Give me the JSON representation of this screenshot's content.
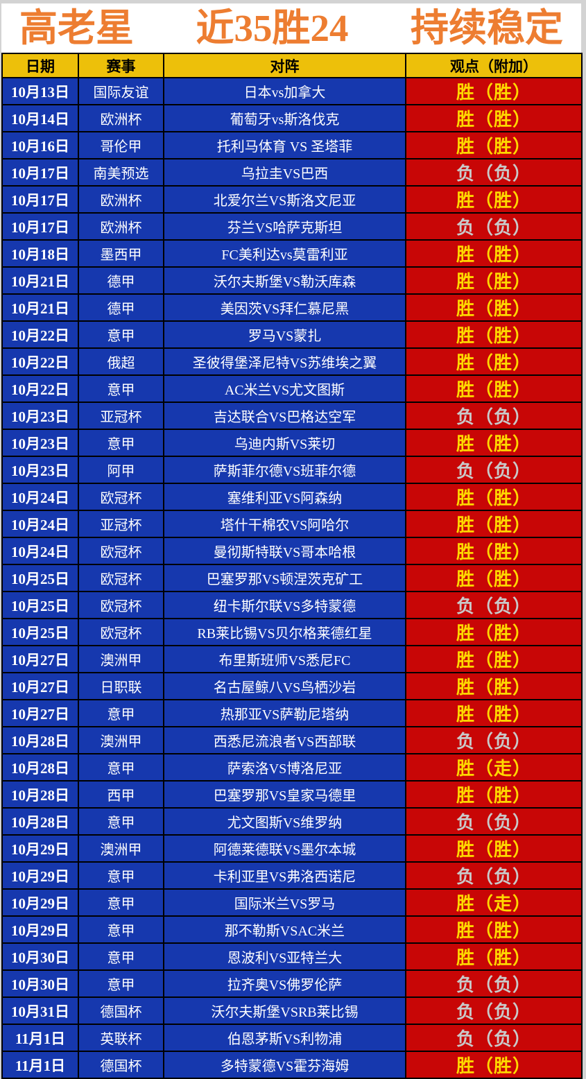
{
  "title": {
    "part1": "高老星",
    "part2": "近35胜24",
    "part3": "持续稳定"
  },
  "columns": [
    "日期",
    "赛事",
    "对阵",
    "观点（附加）"
  ],
  "rows": [
    {
      "date": "10月13日",
      "league": "国际友谊",
      "match": "日本vs加拿大",
      "result": "胜（胜）",
      "outcome": "win"
    },
    {
      "date": "10月14日",
      "league": "欧洲杯",
      "match": "葡萄牙vs斯洛伐克",
      "result": "胜（胜）",
      "outcome": "win"
    },
    {
      "date": "10月16日",
      "league": "哥伦甲",
      "match": "托利马体育 VS 圣塔菲",
      "result": "胜（胜）",
      "outcome": "win"
    },
    {
      "date": "10月17日",
      "league": "南美预选",
      "match": "乌拉圭VS巴西",
      "result": "负（负）",
      "outcome": "lose"
    },
    {
      "date": "10月17日",
      "league": "欧洲杯",
      "match": "北爱尔兰VS斯洛文尼亚",
      "result": "胜（胜）",
      "outcome": "win"
    },
    {
      "date": "10月17日",
      "league": "欧洲杯",
      "match": "芬兰VS哈萨克斯坦",
      "result": "负（负）",
      "outcome": "lose"
    },
    {
      "date": "10月18日",
      "league": "墨西甲",
      "match": "FC美利达vs莫雷利亚",
      "result": "胜（胜）",
      "outcome": "win"
    },
    {
      "date": "10月21日",
      "league": "德甲",
      "match": "沃尔夫斯堡VS勒沃库森",
      "result": "胜（胜）",
      "outcome": "win"
    },
    {
      "date": "10月21日",
      "league": "德甲",
      "match": "美因茨VS拜仁慕尼黑",
      "result": "胜（胜）",
      "outcome": "win"
    },
    {
      "date": "10月22日",
      "league": "意甲",
      "match": "罗马VS蒙扎",
      "result": "胜（胜）",
      "outcome": "win"
    },
    {
      "date": "10月22日",
      "league": "俄超",
      "match": "圣彼得堡泽尼特VS苏维埃之翼",
      "result": "胜（胜）",
      "outcome": "win"
    },
    {
      "date": "10月22日",
      "league": "意甲",
      "match": "AC米兰VS尤文图斯",
      "result": "胜（胜）",
      "outcome": "win"
    },
    {
      "date": "10月23日",
      "league": "亚冠杯",
      "match": "吉达联合VS巴格达空军",
      "result": "负（负）",
      "outcome": "lose"
    },
    {
      "date": "10月23日",
      "league": "意甲",
      "match": "乌迪内斯VS莱切",
      "result": "胜（胜）",
      "outcome": "win"
    },
    {
      "date": "10月23日",
      "league": "阿甲",
      "match": "萨斯菲尔德VS班菲尔德",
      "result": "负（负）",
      "outcome": "lose"
    },
    {
      "date": "10月24日",
      "league": "欧冠杯",
      "match": "塞维利亚VS阿森纳",
      "result": "胜（胜）",
      "outcome": "win"
    },
    {
      "date": "10月24日",
      "league": "亚冠杯",
      "match": "塔什干棉农VS阿哈尔",
      "result": "胜（胜）",
      "outcome": "win"
    },
    {
      "date": "10月24日",
      "league": "欧冠杯",
      "match": "曼彻斯特联VS哥本哈根",
      "result": "胜（胜）",
      "outcome": "win"
    },
    {
      "date": "10月25日",
      "league": "欧冠杯",
      "match": "巴塞罗那VS顿涅茨克矿工",
      "result": "胜（胜）",
      "outcome": "win"
    },
    {
      "date": "10月25日",
      "league": "欧冠杯",
      "match": "纽卡斯尔联VS多特蒙德",
      "result": "负（负）",
      "outcome": "lose"
    },
    {
      "date": "10月25日",
      "league": "欧冠杯",
      "match": "RB莱比锡VS贝尔格莱德红星",
      "result": "胜（胜）",
      "outcome": "win"
    },
    {
      "date": "10月27日",
      "league": "澳洲甲",
      "match": "布里斯班师VS悉尼FC",
      "result": "胜（胜）",
      "outcome": "win"
    },
    {
      "date": "10月27日",
      "league": "日职联",
      "match": "名古屋鲸八VS鸟栖沙岩",
      "result": "胜（胜）",
      "outcome": "win"
    },
    {
      "date": "10月27日",
      "league": "意甲",
      "match": "热那亚VS萨勒尼塔纳",
      "result": "胜（胜）",
      "outcome": "win"
    },
    {
      "date": "10月28日",
      "league": "澳洲甲",
      "match": "西悉尼流浪者VS西部联",
      "result": "负（负）",
      "outcome": "lose"
    },
    {
      "date": "10月28日",
      "league": "意甲",
      "match": "萨索洛VS博洛尼亚",
      "result": "胜（走）",
      "outcome": "win"
    },
    {
      "date": "10月28日",
      "league": "西甲",
      "match": "巴塞罗那VS皇家马德里",
      "result": "胜（胜）",
      "outcome": "win"
    },
    {
      "date": "10月28日",
      "league": "意甲",
      "match": "尤文图斯VS维罗纳",
      "result": "负（负）",
      "outcome": "lose"
    },
    {
      "date": "10月29日",
      "league": "澳洲甲",
      "match": "阿德莱德联VS墨尔本城",
      "result": "胜（胜）",
      "outcome": "win"
    },
    {
      "date": "10月29日",
      "league": "意甲",
      "match": "卡利亚里VS弗洛西诺尼",
      "result": "负（负）",
      "outcome": "lose"
    },
    {
      "date": "10月29日",
      "league": "意甲",
      "match": "国际米兰VS罗马",
      "result": "胜（走）",
      "outcome": "win"
    },
    {
      "date": "10月29日",
      "league": "意甲",
      "match": "那不勒斯VSAC米兰",
      "result": "胜（胜）",
      "outcome": "win"
    },
    {
      "date": "10月30日",
      "league": "意甲",
      "match": "恩波利VS亚特兰大",
      "result": "胜（胜）",
      "outcome": "win"
    },
    {
      "date": "10月30日",
      "league": "意甲",
      "match": "拉齐奥VS佛罗伦萨",
      "result": "负（负）",
      "outcome": "lose"
    },
    {
      "date": "10月31日",
      "league": "德国杯",
      "match": "沃尔夫斯堡VSRB莱比锡",
      "result": "负（负）",
      "outcome": "lose"
    },
    {
      "date": "11月1日",
      "league": "英联杯",
      "match": "伯恩茅斯VS利物浦",
      "result": "负（负）",
      "outcome": "lose"
    },
    {
      "date": "11月1日",
      "league": "德国杯",
      "match": "多特蒙德VS霍芬海姆",
      "result": "胜（胜）",
      "outcome": "win"
    }
  ],
  "colors": {
    "title_orange": "#ed7d31",
    "header_gold": "#edc00a",
    "cell_blue": "#1638ae",
    "result_red": "#c80606",
    "win_yellow": "#ffd800",
    "lose_silver": "#c9c9c9",
    "border_black": "#000000",
    "canvas_gray": "#d3d3d3"
  }
}
